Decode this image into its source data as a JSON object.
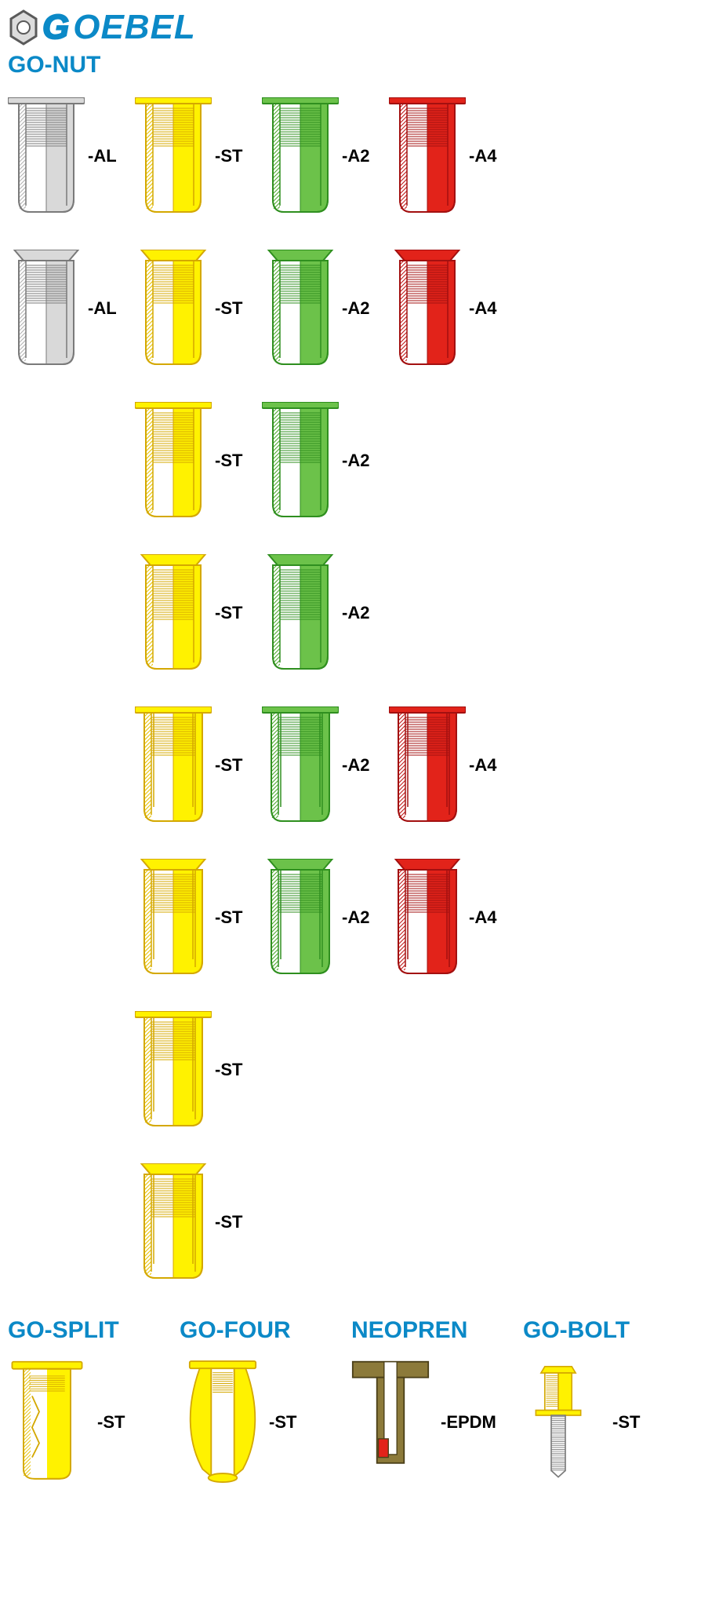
{
  "logo": {
    "text": "OEBEL",
    "g_color": "#0b89c7",
    "text_color": "#0b89c7",
    "hex_outline": "#5a5a5a",
    "hex_fill": "#dcdcdc"
  },
  "titles": {
    "go_nut": "GO-NUT",
    "go_split": "GO-SPLIT",
    "go_four": "GO-FOUR",
    "neopren": "NEOPREN",
    "go_bolt": "GO-BOLT",
    "color": "#0b89c7"
  },
  "materials": {
    "AL": {
      "label": "-AL",
      "fill": "#d9d9d9",
      "stroke": "#7a7a7a",
      "hatch": "#b0b0b0"
    },
    "ST": {
      "label": "-ST",
      "fill": "#fff200",
      "stroke": "#d4a800",
      "hatch": "#e6c200"
    },
    "A2": {
      "label": "-A2",
      "fill": "#6cc24a",
      "stroke": "#2f8f1f",
      "hatch": "#4da62c"
    },
    "A4": {
      "label": "-A4",
      "fill": "#e2231a",
      "stroke": "#a31010",
      "hatch": "#c01515"
    },
    "EPDM": {
      "label": "-EPDM",
      "fill": "#8c7a3a",
      "stroke": "#4a3f18",
      "hatch": "#6b5d2a",
      "inner_white": "#ffffff",
      "seal": "#e2231a"
    }
  },
  "grid": [
    [
      {
        "mat": "AL",
        "head": "flat",
        "body": "round"
      },
      {
        "mat": "ST",
        "head": "flat",
        "body": "round"
      },
      {
        "mat": "A2",
        "head": "flat",
        "body": "round"
      },
      {
        "mat": "A4",
        "head": "flat",
        "body": "round"
      }
    ],
    [
      {
        "mat": "AL",
        "head": "csk",
        "body": "round"
      },
      {
        "mat": "ST",
        "head": "csk",
        "body": "round"
      },
      {
        "mat": "A2",
        "head": "csk",
        "body": "round"
      },
      {
        "mat": "A4",
        "head": "csk",
        "body": "round"
      }
    ],
    [
      null,
      {
        "mat": "ST",
        "head": "flat",
        "body": "round-long"
      },
      {
        "mat": "A2",
        "head": "flat",
        "body": "round-long"
      },
      null
    ],
    [
      null,
      {
        "mat": "ST",
        "head": "csk",
        "body": "round-long"
      },
      {
        "mat": "A2",
        "head": "csk",
        "body": "round-long"
      },
      null
    ],
    [
      null,
      {
        "mat": "ST",
        "head": "flat",
        "body": "hex"
      },
      {
        "mat": "A2",
        "head": "flat",
        "body": "hex"
      },
      {
        "mat": "A4",
        "head": "flat",
        "body": "hex"
      }
    ],
    [
      null,
      {
        "mat": "ST",
        "head": "csk",
        "body": "hex"
      },
      {
        "mat": "A2",
        "head": "csk",
        "body": "hex"
      },
      {
        "mat": "A4",
        "head": "csk",
        "body": "hex"
      }
    ],
    [
      null,
      {
        "mat": "ST",
        "head": "flat",
        "body": "halfhex"
      },
      null,
      null
    ],
    [
      null,
      {
        "mat": "ST",
        "head": "csk",
        "body": "halfhex"
      },
      null,
      null
    ]
  ],
  "bottom": {
    "split": {
      "mat": "ST"
    },
    "four": {
      "mat": "ST"
    },
    "neopren": {
      "mat": "EPDM"
    },
    "bolt": {
      "mat": "ST"
    }
  }
}
